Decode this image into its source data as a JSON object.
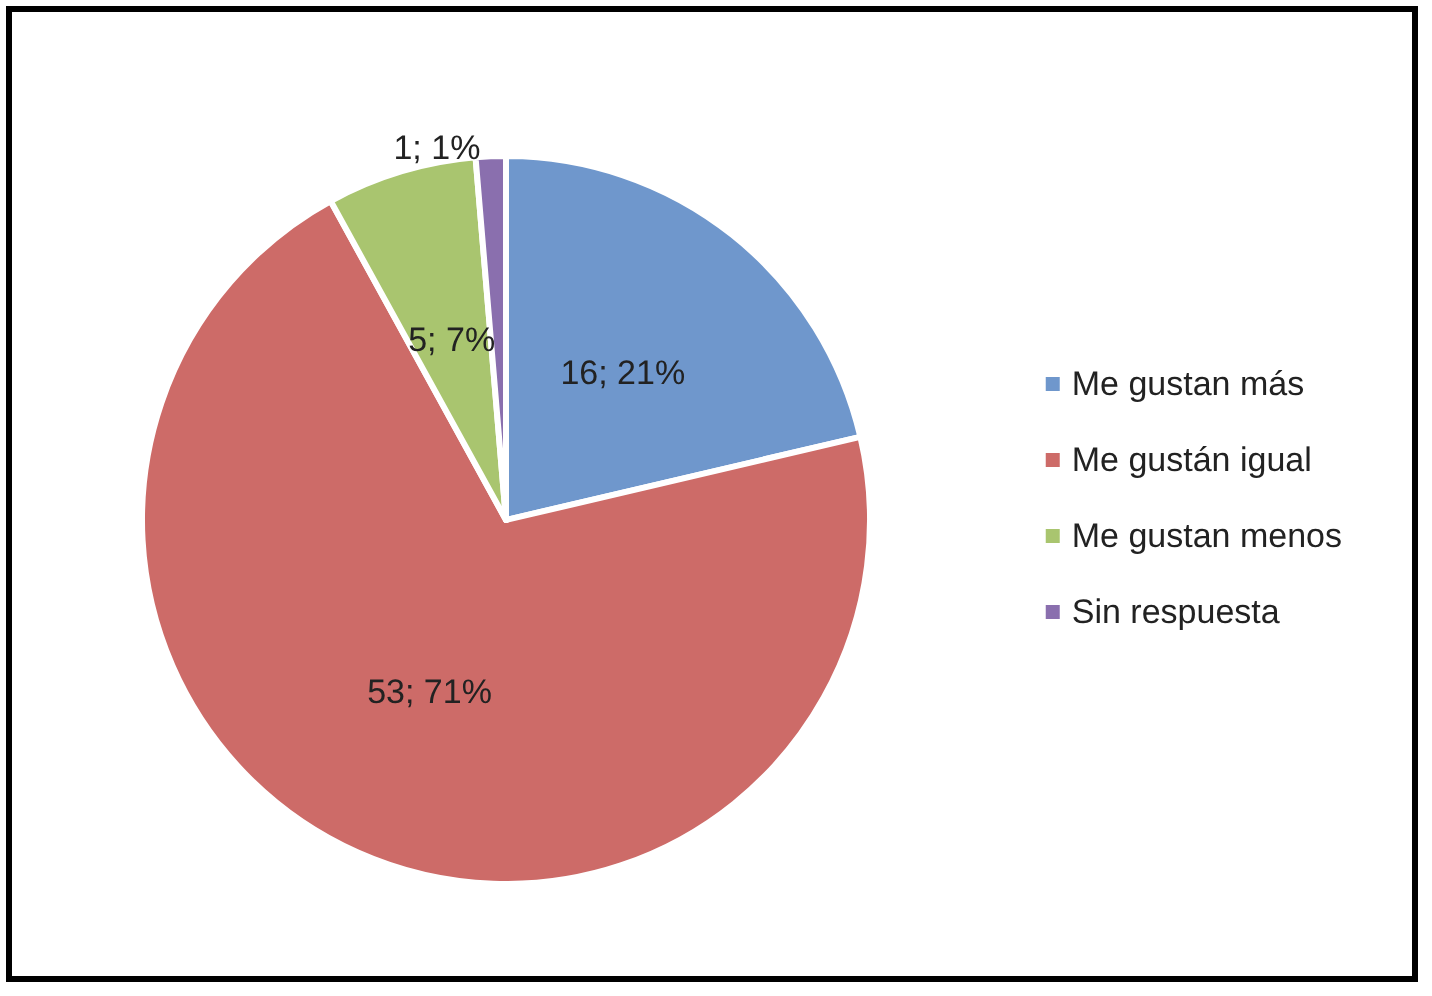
{
  "chart_data": {
    "type": "pie",
    "categories": [
      "Me gustan más",
      "Me gustán igual",
      "Me gustan menos",
      "Sin respuesta"
    ],
    "values": [
      16,
      53,
      5,
      1
    ],
    "colors": [
      "#6f97cc",
      "#cd6b68",
      "#a9c56f",
      "#8a6fae"
    ],
    "value_labels": [
      "16; 21%",
      "53; 71%",
      "5; 7%",
      "1; 1%"
    ],
    "legend": "right"
  }
}
